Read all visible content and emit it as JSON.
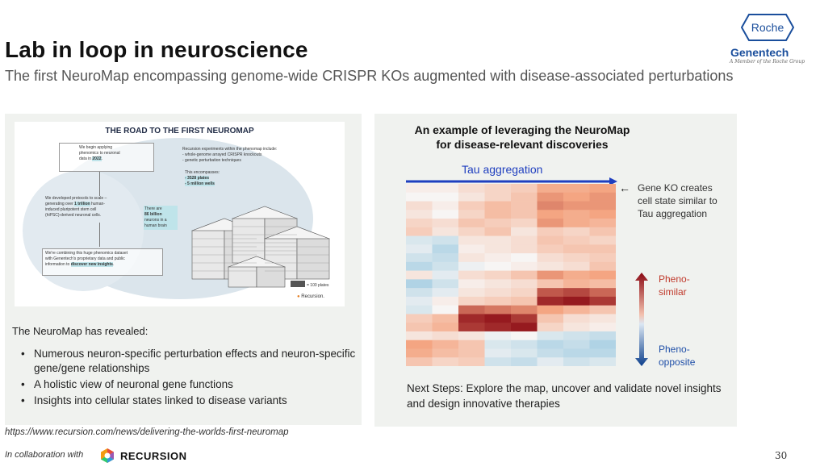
{
  "slide": {
    "title": "Lab in loop in neuroscience",
    "subtitle": "The first NeuroMap encompassing genome-wide CRISPR KOs augmented with disease-associated perturbations",
    "page_number": "30"
  },
  "branding": {
    "roche": "Roche",
    "genentech": "Genentech",
    "member": "A Member of the Roche Group"
  },
  "road_image": {
    "title": "THE ROAD TO THE FIRST NEUROMAP",
    "box1": [
      "We begin applying",
      "phenomics to neuronal",
      "data in ",
      "2022",
      "."
    ],
    "box2": [
      "We developed protocols to scale –",
      "generating over ",
      "1 trillion",
      " human-",
      "induced pluripotent stem cell",
      "(hiPSC)-derived neuronal cells."
    ],
    "box3": [
      "We're combining this huge phenomics dataset",
      "with Genentech's proprietary data and public",
      "information to ",
      "discover new insights",
      "."
    ],
    "experiments": [
      "Recursion experiments within the phenomap include:",
      "- whole-genome arrayed CRISPR knockouts",
      "- genetic perturbation techniques"
    ],
    "encompasses": "This encompasses:",
    "plates": "- 3528 plates",
    "wells": "- 5 million wells",
    "neurons": [
      "There are",
      "86 billion",
      "neurons in a",
      "human brain"
    ],
    "plates_note": "= 100 plates",
    "brand": "Recursion."
  },
  "left": {
    "heading": "The NeuroMap has revealed:",
    "bullets": [
      "Numerous neuron-specific perturbation effects and neuron-specific gene/gene relationships",
      "A holistic view of neuronal gene functions",
      "Insights into cellular states linked to disease variants"
    ]
  },
  "right": {
    "title_line1": "An example of leveraging the NeuroMap",
    "title_line2": "for disease-relevant discoveries",
    "tau": "Tau aggregation",
    "ko_arrow": "←",
    "ko_text": "Gene KO creates cell state similar to Tau aggregation",
    "pheno_similar": [
      "Pheno-",
      "similar"
    ],
    "pheno_opposite": [
      "Pheno-",
      "opposite"
    ],
    "next_steps": "Next Steps: Explore the map, uncover and validate novel insights and design innovative therapies"
  },
  "footer": {
    "source_url": "https://www.recursion.com/news/delivering-the-worlds-first-neuromap",
    "collab": "In collaboration with",
    "recursion": "RECURSION"
  },
  "colors": {
    "tau_blue": "#1f3fbf",
    "similar_red": "#c0392b",
    "opposite_blue": "#1f4fa8",
    "genentech_blue": "#1a4e9c",
    "panel_bg": "#f0f2ef"
  },
  "heatmap_values": [
    [
      0.05,
      0.05,
      0.15,
      0.2,
      0.25,
      0.45,
      0.45,
      0.5
    ],
    [
      0.0,
      0.0,
      0.1,
      0.2,
      0.3,
      0.55,
      0.5,
      0.55
    ],
    [
      0.15,
      0.05,
      0.25,
      0.35,
      0.3,
      0.6,
      0.55,
      0.55
    ],
    [
      0.1,
      0.0,
      0.2,
      0.35,
      0.3,
      0.5,
      0.45,
      0.5
    ],
    [
      0.2,
      0.15,
      0.3,
      0.25,
      0.2,
      0.55,
      0.45,
      0.4
    ],
    [
      0.25,
      0.1,
      0.2,
      0.3,
      0.1,
      0.25,
      0.2,
      0.3
    ],
    [
      -0.15,
      -0.2,
      0.1,
      0.1,
      0.15,
      0.3,
      0.25,
      0.2
    ],
    [
      -0.1,
      -0.3,
      0.05,
      0.1,
      0.15,
      0.25,
      0.3,
      0.3
    ],
    [
      -0.2,
      -0.25,
      0.1,
      0.05,
      0.0,
      0.15,
      0.2,
      0.25
    ],
    [
      -0.3,
      -0.2,
      -0.05,
      0.0,
      0.05,
      0.1,
      0.15,
      0.3
    ],
    [
      0.1,
      -0.1,
      0.15,
      0.2,
      0.3,
      0.55,
      0.45,
      0.5
    ],
    [
      -0.35,
      -0.2,
      0.05,
      0.1,
      0.15,
      0.3,
      0.4,
      0.35
    ],
    [
      -0.2,
      -0.1,
      0.1,
      0.15,
      0.2,
      0.75,
      0.8,
      0.7
    ],
    [
      -0.1,
      0.05,
      0.2,
      0.25,
      0.3,
      0.9,
      0.95,
      0.85
    ],
    [
      -0.15,
      0.0,
      0.7,
      0.65,
      0.6,
      0.5,
      0.4,
      0.3
    ],
    [
      0.25,
      0.35,
      0.9,
      0.95,
      0.85,
      0.3,
      0.15,
      0.1
    ],
    [
      0.3,
      0.4,
      0.85,
      0.9,
      0.95,
      0.2,
      0.1,
      0.05
    ],
    [
      0.1,
      0.15,
      0.1,
      -0.05,
      0.0,
      -0.15,
      -0.2,
      -0.25
    ],
    [
      0.5,
      0.4,
      0.3,
      -0.15,
      -0.2,
      -0.3,
      -0.25,
      -0.35
    ],
    [
      0.45,
      0.35,
      0.3,
      -0.1,
      -0.15,
      -0.25,
      -0.3,
      -0.3
    ],
    [
      0.3,
      0.2,
      0.25,
      -0.2,
      -0.25,
      -0.1,
      -0.2,
      -0.15
    ]
  ]
}
